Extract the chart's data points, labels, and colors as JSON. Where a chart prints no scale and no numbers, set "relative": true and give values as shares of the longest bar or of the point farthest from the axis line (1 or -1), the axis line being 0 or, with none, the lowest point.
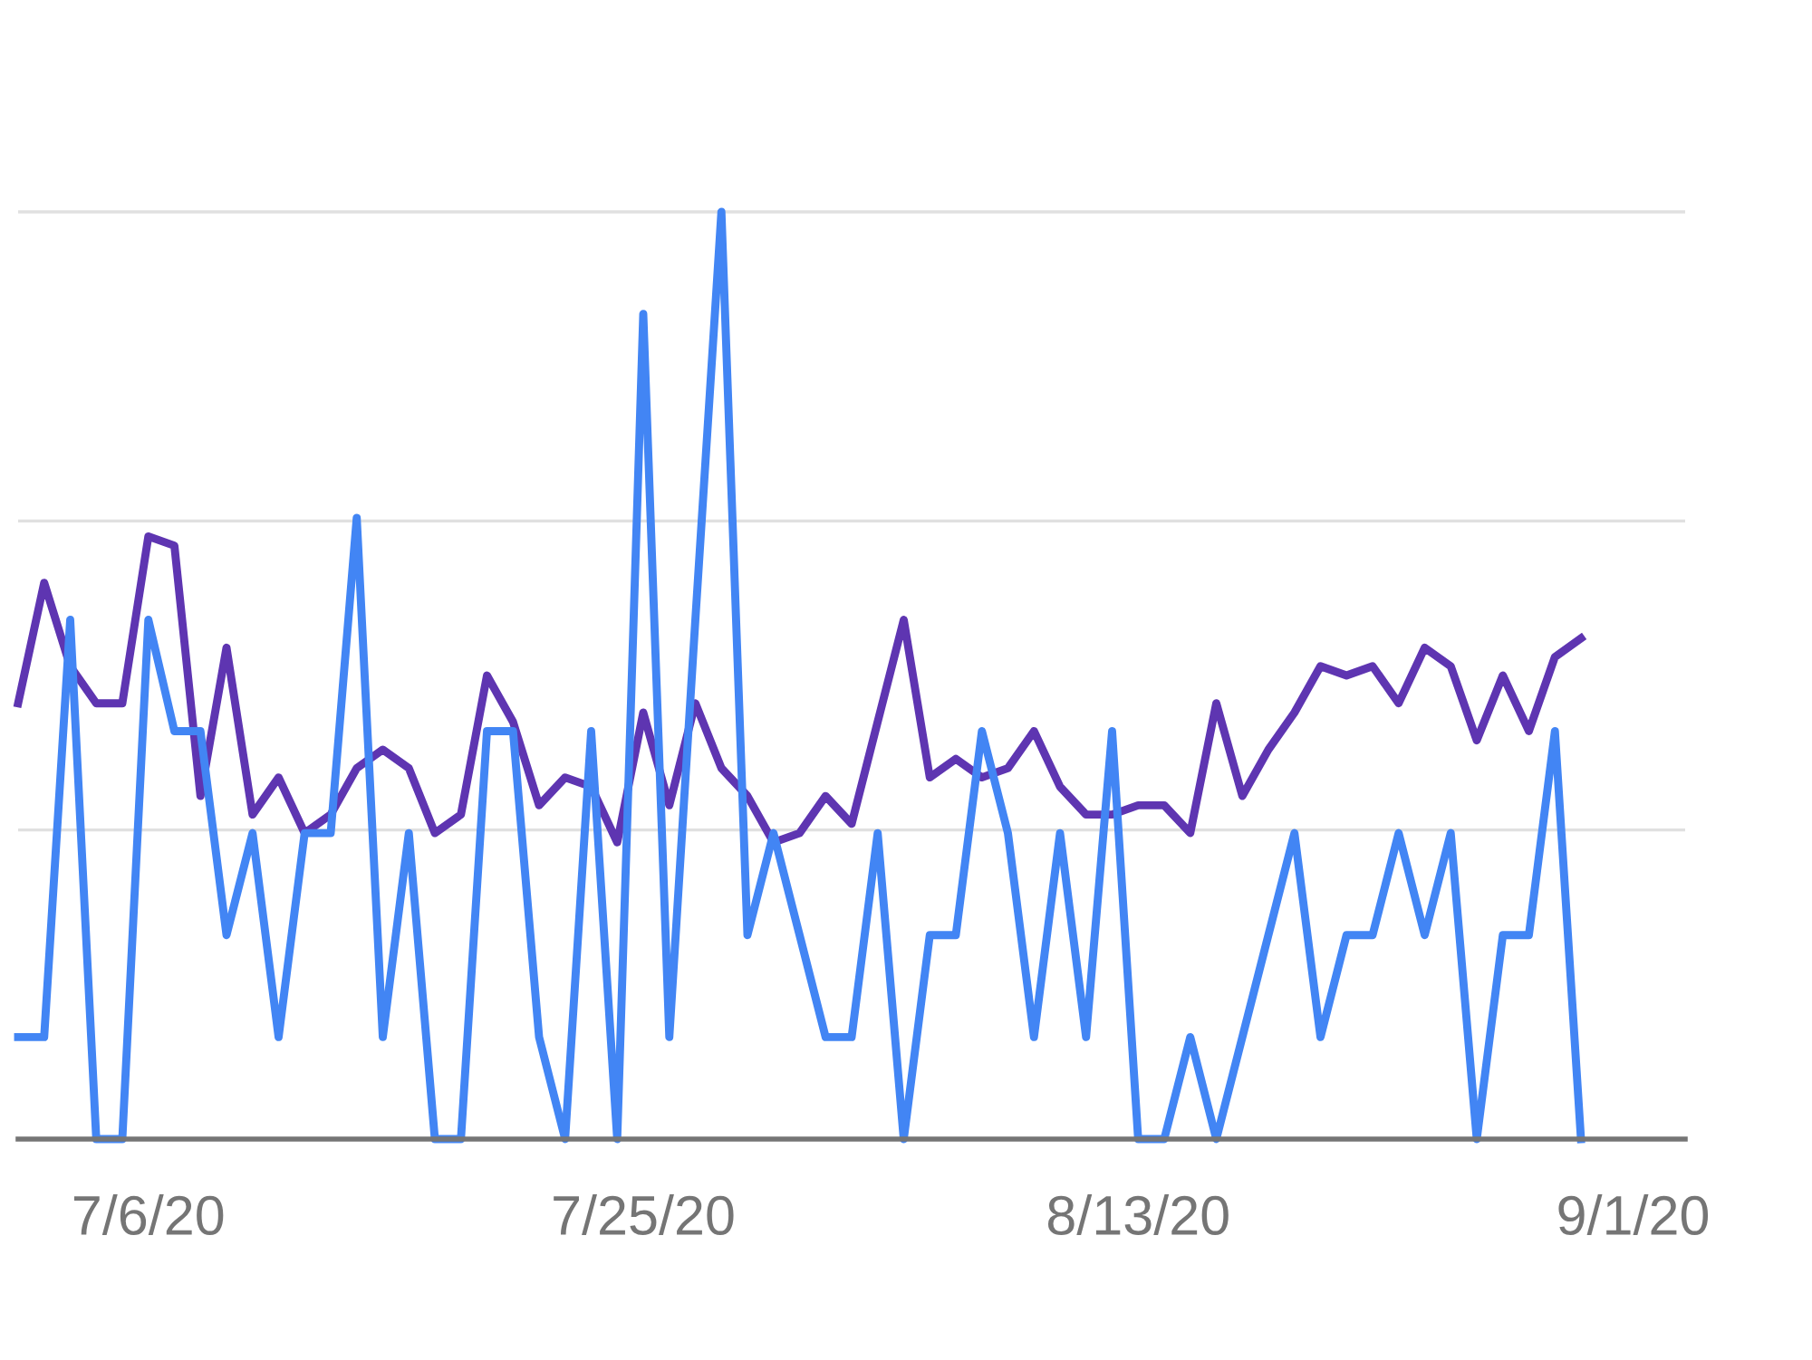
{
  "chart_data": {
    "type": "line",
    "relative": true,
    "tick_labels": "x",
    "x": [
      "2020-07-01",
      "2020-07-02",
      "2020-07-03",
      "2020-07-04",
      "2020-07-05",
      "2020-07-06",
      "2020-07-07",
      "2020-07-08",
      "2020-07-09",
      "2020-07-10",
      "2020-07-11",
      "2020-07-12",
      "2020-07-13",
      "2020-07-14",
      "2020-07-15",
      "2020-07-16",
      "2020-07-17",
      "2020-07-18",
      "2020-07-19",
      "2020-07-20",
      "2020-07-21",
      "2020-07-22",
      "2020-07-23",
      "2020-07-24",
      "2020-07-25",
      "2020-07-26",
      "2020-07-27",
      "2020-07-28",
      "2020-07-29",
      "2020-07-30",
      "2020-07-31",
      "2020-08-01",
      "2020-08-02",
      "2020-08-03",
      "2020-08-04",
      "2020-08-05",
      "2020-08-06",
      "2020-08-07",
      "2020-08-08",
      "2020-08-09",
      "2020-08-10",
      "2020-08-11",
      "2020-08-12",
      "2020-08-13",
      "2020-08-14",
      "2020-08-15",
      "2020-08-16",
      "2020-08-17",
      "2020-08-18",
      "2020-08-19",
      "2020-08-20",
      "2020-08-21",
      "2020-08-22",
      "2020-08-23",
      "2020-08-24",
      "2020-08-25",
      "2020-08-26",
      "2020-08-27",
      "2020-08-28",
      "2020-08-29",
      "2020-08-30"
    ],
    "xlim": [
      "2020-07-01",
      "2020-09-03"
    ],
    "ref_lines": [
      {
        "axis": "y",
        "value": 0.3333,
        "color": "#e0e0e0"
      },
      {
        "axis": "y",
        "value": 0.6667,
        "color": "#e0e0e0"
      },
      {
        "axis": "y",
        "value": 1,
        "color": "#e0e0e0"
      }
    ],
    "xticks": [
      {
        "value": "2020-07-06",
        "label": "7/6/20"
      },
      {
        "value": "2020-07-25",
        "label": "7/25/20"
      },
      {
        "value": "2020-08-13",
        "label": "8/13/20"
      },
      {
        "value": "2020-09-01",
        "label": "9/1/20"
      }
    ],
    "series": [
      {
        "color": "#5e35b1",
        "values": [
          0.47,
          0.6,
          0.51,
          0.47,
          0.47,
          0.65,
          0.64,
          0.37,
          0.53,
          0.35,
          0.39,
          0.33,
          0.35,
          0.4,
          0.42,
          0.4,
          0.33,
          0.35,
          0.5,
          0.45,
          0.36,
          0.39,
          0.38,
          0.32,
          0.46,
          0.36,
          0.47,
          0.4,
          0.37,
          0.32,
          0.33,
          0.37,
          0.34,
          0.45,
          0.56,
          0.39,
          0.41,
          0.39,
          0.4,
          0.44,
          0.38,
          0.35,
          0.35,
          0.36,
          0.36,
          0.33,
          0.47,
          0.37,
          0.42,
          0.46,
          0.51,
          0.5,
          0.51,
          0.47,
          0.53,
          0.51,
          0.43,
          0.5,
          0.44,
          0.52,
          0.54
        ]
      },
      {
        "color": "#4285f4",
        "values": [
          0.11,
          0.11,
          0.56,
          0,
          0,
          0.56,
          0.44,
          0.44,
          0.22,
          0.33,
          0.11,
          0.33,
          0.33,
          0.67,
          0.11,
          0.33,
          0,
          0,
          0.44,
          0.44,
          0.11,
          0,
          0.44,
          0,
          0.89,
          0.11,
          0.56,
          1,
          0.22,
          0.33,
          0.22,
          0.11,
          0.11,
          0.33,
          0,
          0.22,
          0.22,
          0.44,
          0.33,
          0.11,
          0.33,
          0.11,
          0.44,
          0,
          0,
          0.11,
          0,
          0.11,
          0.22,
          0.33,
          0.11,
          0.22,
          0.22,
          0.33,
          0.22,
          0.33,
          0,
          0.22,
          0.22,
          0.44,
          0
        ]
      }
    ]
  }
}
